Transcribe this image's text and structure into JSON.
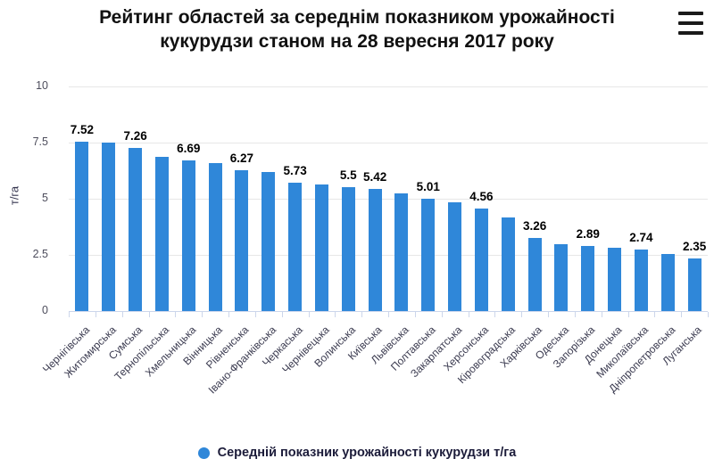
{
  "header": {
    "title_lines": [
      "Рейтинг областей за середнім показником урожайності",
      "кукурудзи станом на 28 вересня 2017 року"
    ],
    "menu_icon": "hamburger-icon"
  },
  "chart_data": {
    "type": "bar",
    "title": "Рейтинг областей за середнім показником урожайності кукурудзи станом на 28 вересня 2017 року",
    "xlabel": "",
    "ylabel": "т/га",
    "ylim": [
      0,
      10
    ],
    "yticks": [
      0,
      2.5,
      5,
      7.5,
      10
    ],
    "ytick_labels": [
      "0",
      "2.5",
      "5",
      "7.5",
      "10"
    ],
    "grid": "horizontal",
    "categories": [
      "Чернігівська",
      "Житомирська",
      "Сумська",
      "Тернопільська",
      "Хмельницька",
      "Вінницька",
      "Рівненська",
      "Івано-Франківська",
      "Черкаська",
      "Чернівецька",
      "Волинська",
      "Київська",
      "Львівська",
      "Полтавська",
      "Закарпатська",
      "Херсонська",
      "Кіровоградська",
      "Харківська",
      "Одеська",
      "Запорізька",
      "Донецька",
      "Миколаївська",
      "Дніпропетровська",
      "Луганська"
    ],
    "values": [
      7.52,
      7.5,
      7.26,
      6.85,
      6.69,
      6.6,
      6.27,
      6.18,
      5.73,
      5.63,
      5.5,
      5.42,
      5.22,
      5.01,
      4.83,
      4.56,
      4.17,
      3.26,
      2.98,
      2.89,
      2.8,
      2.74,
      2.53,
      2.35
    ],
    "data_labels": [
      "7.52",
      "",
      "7.26",
      "",
      "6.69",
      "",
      "6.27",
      "",
      "5.73",
      "",
      "5.5",
      "5.42",
      "",
      "5.01",
      "",
      "4.56",
      "",
      "3.26",
      "",
      "2.89",
      "",
      "2.74",
      "",
      "2.35"
    ],
    "legend": {
      "position": "bottom",
      "label": "Середній показник урожайності кукурудзи т/га",
      "marker_color": "#2f87d9"
    }
  },
  "colors": {
    "bar": "#2f87d9",
    "gridline": "#e7e7e7",
    "axis": "#ccd6eb",
    "title_text": "#111111",
    "data_label": "#000000",
    "ytick_label": "#4d4d5c",
    "category_label": "#3b3b50",
    "legend_text": "#1c1c3a"
  }
}
